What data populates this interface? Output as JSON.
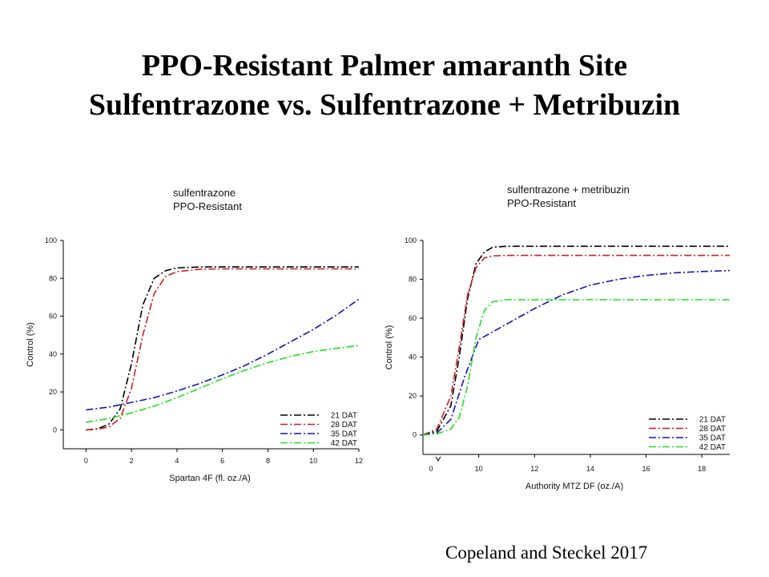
{
  "slide": {
    "title_line1": "PPO-Resistant Palmer amaranth Site",
    "title_line2": "Sulfentrazone vs. Sulfentrazone + Metribuzin",
    "credit": "Copeland and Steckel 2017"
  },
  "chart_data": [
    {
      "type": "line",
      "title": "sulfentrazone",
      "subtitle": "PPO-Resistant",
      "xlabel": "Spartan 4F (fl. oz./A)",
      "ylabel": "Control (%)",
      "xlim": [
        -1,
        12
      ],
      "ylim": [
        -10,
        100
      ],
      "xticks": [
        0,
        2,
        4,
        6,
        8,
        10,
        12
      ],
      "yticks": [
        0,
        20,
        40,
        60,
        80,
        100
      ],
      "legend_position": "bottom-right",
      "series": [
        {
          "name": "21 DAT",
          "color": "#000000",
          "x": [
            0,
            0.5,
            1,
            1.5,
            2,
            2.5,
            3,
            3.5,
            4,
            5,
            6,
            8,
            10,
            12
          ],
          "y": [
            0,
            0.5,
            3,
            11,
            35,
            66,
            80,
            84,
            85.5,
            86,
            86,
            86,
            86,
            86
          ]
        },
        {
          "name": "28 DAT",
          "color": "#cc1f1f",
          "x": [
            0,
            0.5,
            1,
            1.5,
            2,
            2.5,
            3,
            3.5,
            4,
            5,
            6,
            8,
            10,
            12
          ],
          "y": [
            0,
            0.3,
            1.5,
            6,
            22,
            50,
            72,
            81,
            83.5,
            84.8,
            85,
            85,
            85,
            85
          ]
        },
        {
          "name": "35 DAT",
          "color": "#1414b4",
          "x": [
            0,
            1,
            2,
            3,
            4,
            5,
            6,
            7,
            8,
            9,
            10,
            11,
            12
          ],
          "y": [
            10.5,
            12,
            14.5,
            17,
            20.5,
            24.5,
            29,
            34,
            40,
            46.5,
            53,
            60.5,
            69
          ]
        },
        {
          "name": "42 DAT",
          "color": "#22dd22",
          "x": [
            0,
            1,
            2,
            3,
            4,
            5,
            6,
            7,
            8,
            9,
            10,
            11,
            12
          ],
          "y": [
            4,
            6,
            9,
            12.5,
            17,
            22,
            27,
            31.5,
            35.5,
            38.8,
            41.3,
            43,
            44.5
          ]
        }
      ]
    },
    {
      "type": "line",
      "title": "sulfentrazone + metribuzin",
      "subtitle": "PPO-Resistant",
      "xlabel": "Authority MTZ DF (oz./A)",
      "ylabel": "Control (%)",
      "xlim": [
        8,
        19
      ],
      "ylim": [
        -10,
        100
      ],
      "xticks": [
        10,
        12,
        14,
        16,
        18
      ],
      "yticks": [
        0,
        20,
        40,
        60,
        80,
        100
      ],
      "axis_break_label": "0",
      "legend_position": "bottom-right",
      "series": [
        {
          "name": "21 DAT",
          "color": "#000000",
          "x": [
            8,
            8.5,
            9,
            9.3,
            9.6,
            9.9,
            10.2,
            10.5,
            11,
            12,
            14,
            16,
            18,
            19
          ],
          "y": [
            0,
            2,
            15,
            40,
            70,
            88,
            94,
            96.5,
            97,
            97,
            97,
            97,
            97,
            97
          ]
        },
        {
          "name": "28 DAT",
          "color": "#cc1f1f",
          "x": [
            8,
            8.5,
            9,
            9.3,
            9.6,
            9.9,
            10.2,
            10.5,
            11,
            12,
            14,
            16,
            18,
            19
          ],
          "y": [
            0,
            3,
            20,
            45,
            72,
            86,
            91,
            92,
            92.3,
            92.3,
            92.3,
            92.3,
            92.3,
            92.3
          ]
        },
        {
          "name": "35 DAT",
          "color": "#1414b4",
          "x": [
            8,
            8.5,
            9,
            9.5,
            10,
            10.5,
            11,
            12,
            13,
            14,
            15,
            16,
            17,
            18,
            19
          ],
          "y": [
            0,
            1,
            8,
            30,
            49,
            53,
            57,
            65,
            72,
            77,
            80,
            82,
            83.3,
            84,
            84.5
          ]
        },
        {
          "name": "42 DAT",
          "color": "#22dd22",
          "x": [
            8,
            8.5,
            9,
            9.3,
            9.6,
            9.9,
            10.2,
            10.5,
            11,
            12,
            14,
            16,
            18,
            19
          ],
          "y": [
            0,
            0.5,
            3,
            9,
            25,
            50,
            64,
            68.5,
            69.5,
            69.5,
            69.5,
            69.5,
            69.5,
            69.5
          ]
        }
      ]
    }
  ]
}
